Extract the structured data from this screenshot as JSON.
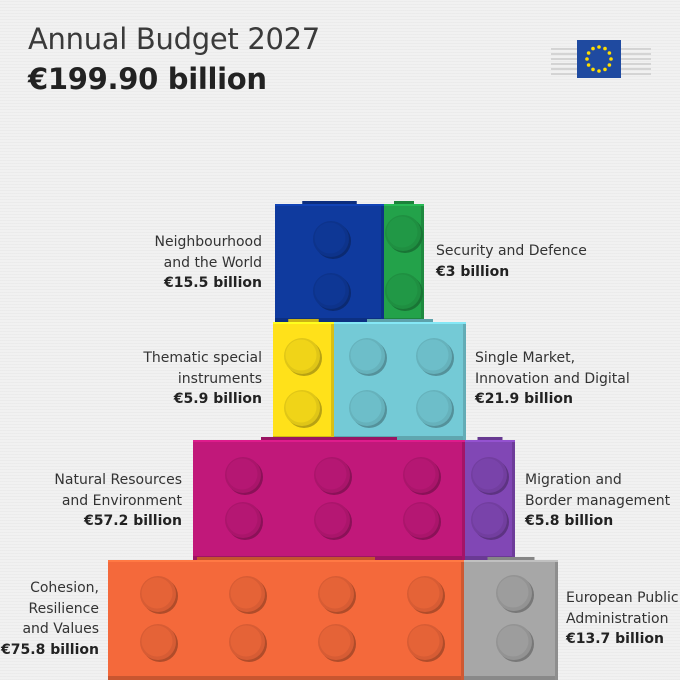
{
  "header": {
    "title": "Annual Budget 2027",
    "total": "€199.90 billion"
  },
  "logo": {
    "name": "eu-commission-logo-icon",
    "flag_color": "#1f4aa0",
    "star_color": "#ffdd00"
  },
  "chart_data": {
    "type": "bar",
    "unit": "€ billion",
    "categories": [
      "Neighbourhood and the World",
      "Security and Defence",
      "Thematic special instruments",
      "Single Market, Innovation and Digital",
      "Natural Resources and Environment",
      "Migration and Border management",
      "Cohesion, Resilience and Values",
      "European Public Administration"
    ],
    "values": [
      15.5,
      3,
      5.9,
      21.9,
      57.2,
      5.8,
      75.8,
      13.7
    ],
    "items": [
      {
        "key": "neighbourhood",
        "name": "Neighbourhood\nand the World",
        "value": 15.5,
        "value_label": "€15.5 billion",
        "color": "#0f3a9e",
        "side": "left",
        "studs": 2
      },
      {
        "key": "security",
        "name": "Security and Defence",
        "value": 3,
        "value_label": "€3 billion",
        "color": "#23a24a",
        "side": "right",
        "studs": 2
      },
      {
        "key": "thematic",
        "name": "Thematic special\ninstruments",
        "value": 5.9,
        "value_label": "€5.9 billion",
        "color": "#ffe11a",
        "side": "left",
        "studs": 2
      },
      {
        "key": "single-market",
        "name": "Single Market,\nInnovation and Digital",
        "value": 21.9,
        "value_label": "€21.9 billion",
        "color": "#74cad6",
        "side": "right",
        "studs": 4
      },
      {
        "key": "natural-resources",
        "name": "Natural Resources\nand Environment",
        "value": 57.2,
        "value_label": "€57.2 billion",
        "color": "#c1187a",
        "side": "left",
        "studs": 6
      },
      {
        "key": "migration",
        "name": "Migration and\nBorder management",
        "value": 5.8,
        "value_label": "€5.8 billion",
        "color": "#8147b5",
        "side": "right",
        "studs": 2
      },
      {
        "key": "cohesion",
        "name": "Cohesion,\nResilience\nand Values",
        "value": 75.8,
        "value_label": "€75.8 billion",
        "color": "#f4693b",
        "side": "left",
        "studs": 8
      },
      {
        "key": "public-admin",
        "name": "European Public\nAdministration",
        "value": 13.7,
        "value_label": "€13.7 billion",
        "color": "#a7a7a7",
        "side": "right",
        "studs": 2
      }
    ],
    "legend": "none",
    "grid": false
  }
}
